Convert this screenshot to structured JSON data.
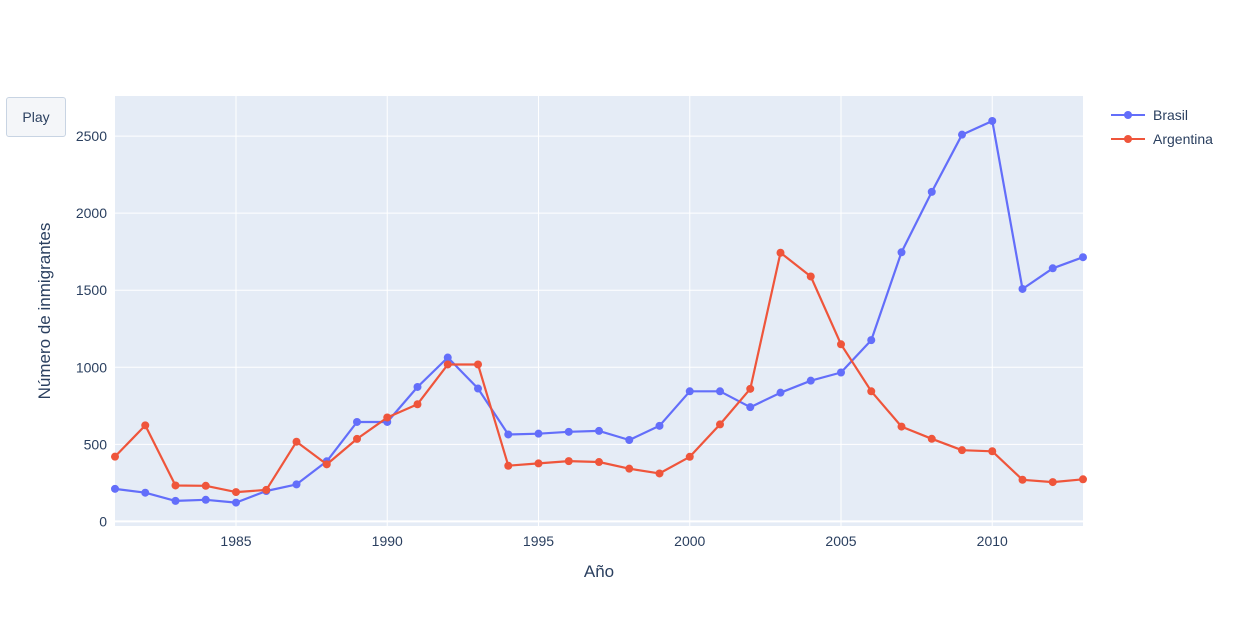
{
  "controls": {
    "play_label": "Play"
  },
  "chart_data": {
    "type": "line",
    "title": "",
    "xlabel": "Año",
    "ylabel": "Número de inmigrantes",
    "xlim": [
      1981,
      2013
    ],
    "ylim": [
      -30,
      2760
    ],
    "x_ticks": [
      1985,
      1990,
      1995,
      2000,
      2005,
      2010
    ],
    "y_ticks": [
      0,
      500,
      1000,
      1500,
      2000,
      2500
    ],
    "grid": true,
    "legend_position": "top-right",
    "x": [
      1981,
      1982,
      1983,
      1984,
      1985,
      1986,
      1987,
      1988,
      1989,
      1990,
      1991,
      1992,
      1993,
      1994,
      1995,
      1996,
      1997,
      1998,
      1999,
      2000,
      2001,
      2002,
      2003,
      2004,
      2005,
      2006,
      2007,
      2008,
      2009,
      2010,
      2011,
      2012,
      2013
    ],
    "series": [
      {
        "name": "Brasil",
        "color": "#636efa",
        "values": [
          211,
          186,
          133,
          140,
          122,
          197,
          240,
          390,
          645,
          645,
          872,
          1063,
          862,
          564,
          569,
          581,
          587,
          528,
          620,
          844,
          844,
          741,
          835,
          913,
          966,
          1176,
          1746,
          2138,
          2509,
          2598,
          1508,
          1642,
          1714
        ]
      },
      {
        "name": "Argentina",
        "color": "#ef553b",
        "values": [
          420,
          623,
          233,
          231,
          190,
          204,
          517,
          370,
          535,
          674,
          760,
          1018,
          1018,
          361,
          376,
          391,
          385,
          342,
          311,
          419,
          629,
          860,
          1743,
          1589,
          1149,
          844,
          615,
          536,
          462,
          455,
          270,
          255,
          273
        ]
      }
    ],
    "colors": {
      "plot_background": "#e5ecf6",
      "grid": "#ffffff",
      "text": "#2a3f5f"
    }
  }
}
